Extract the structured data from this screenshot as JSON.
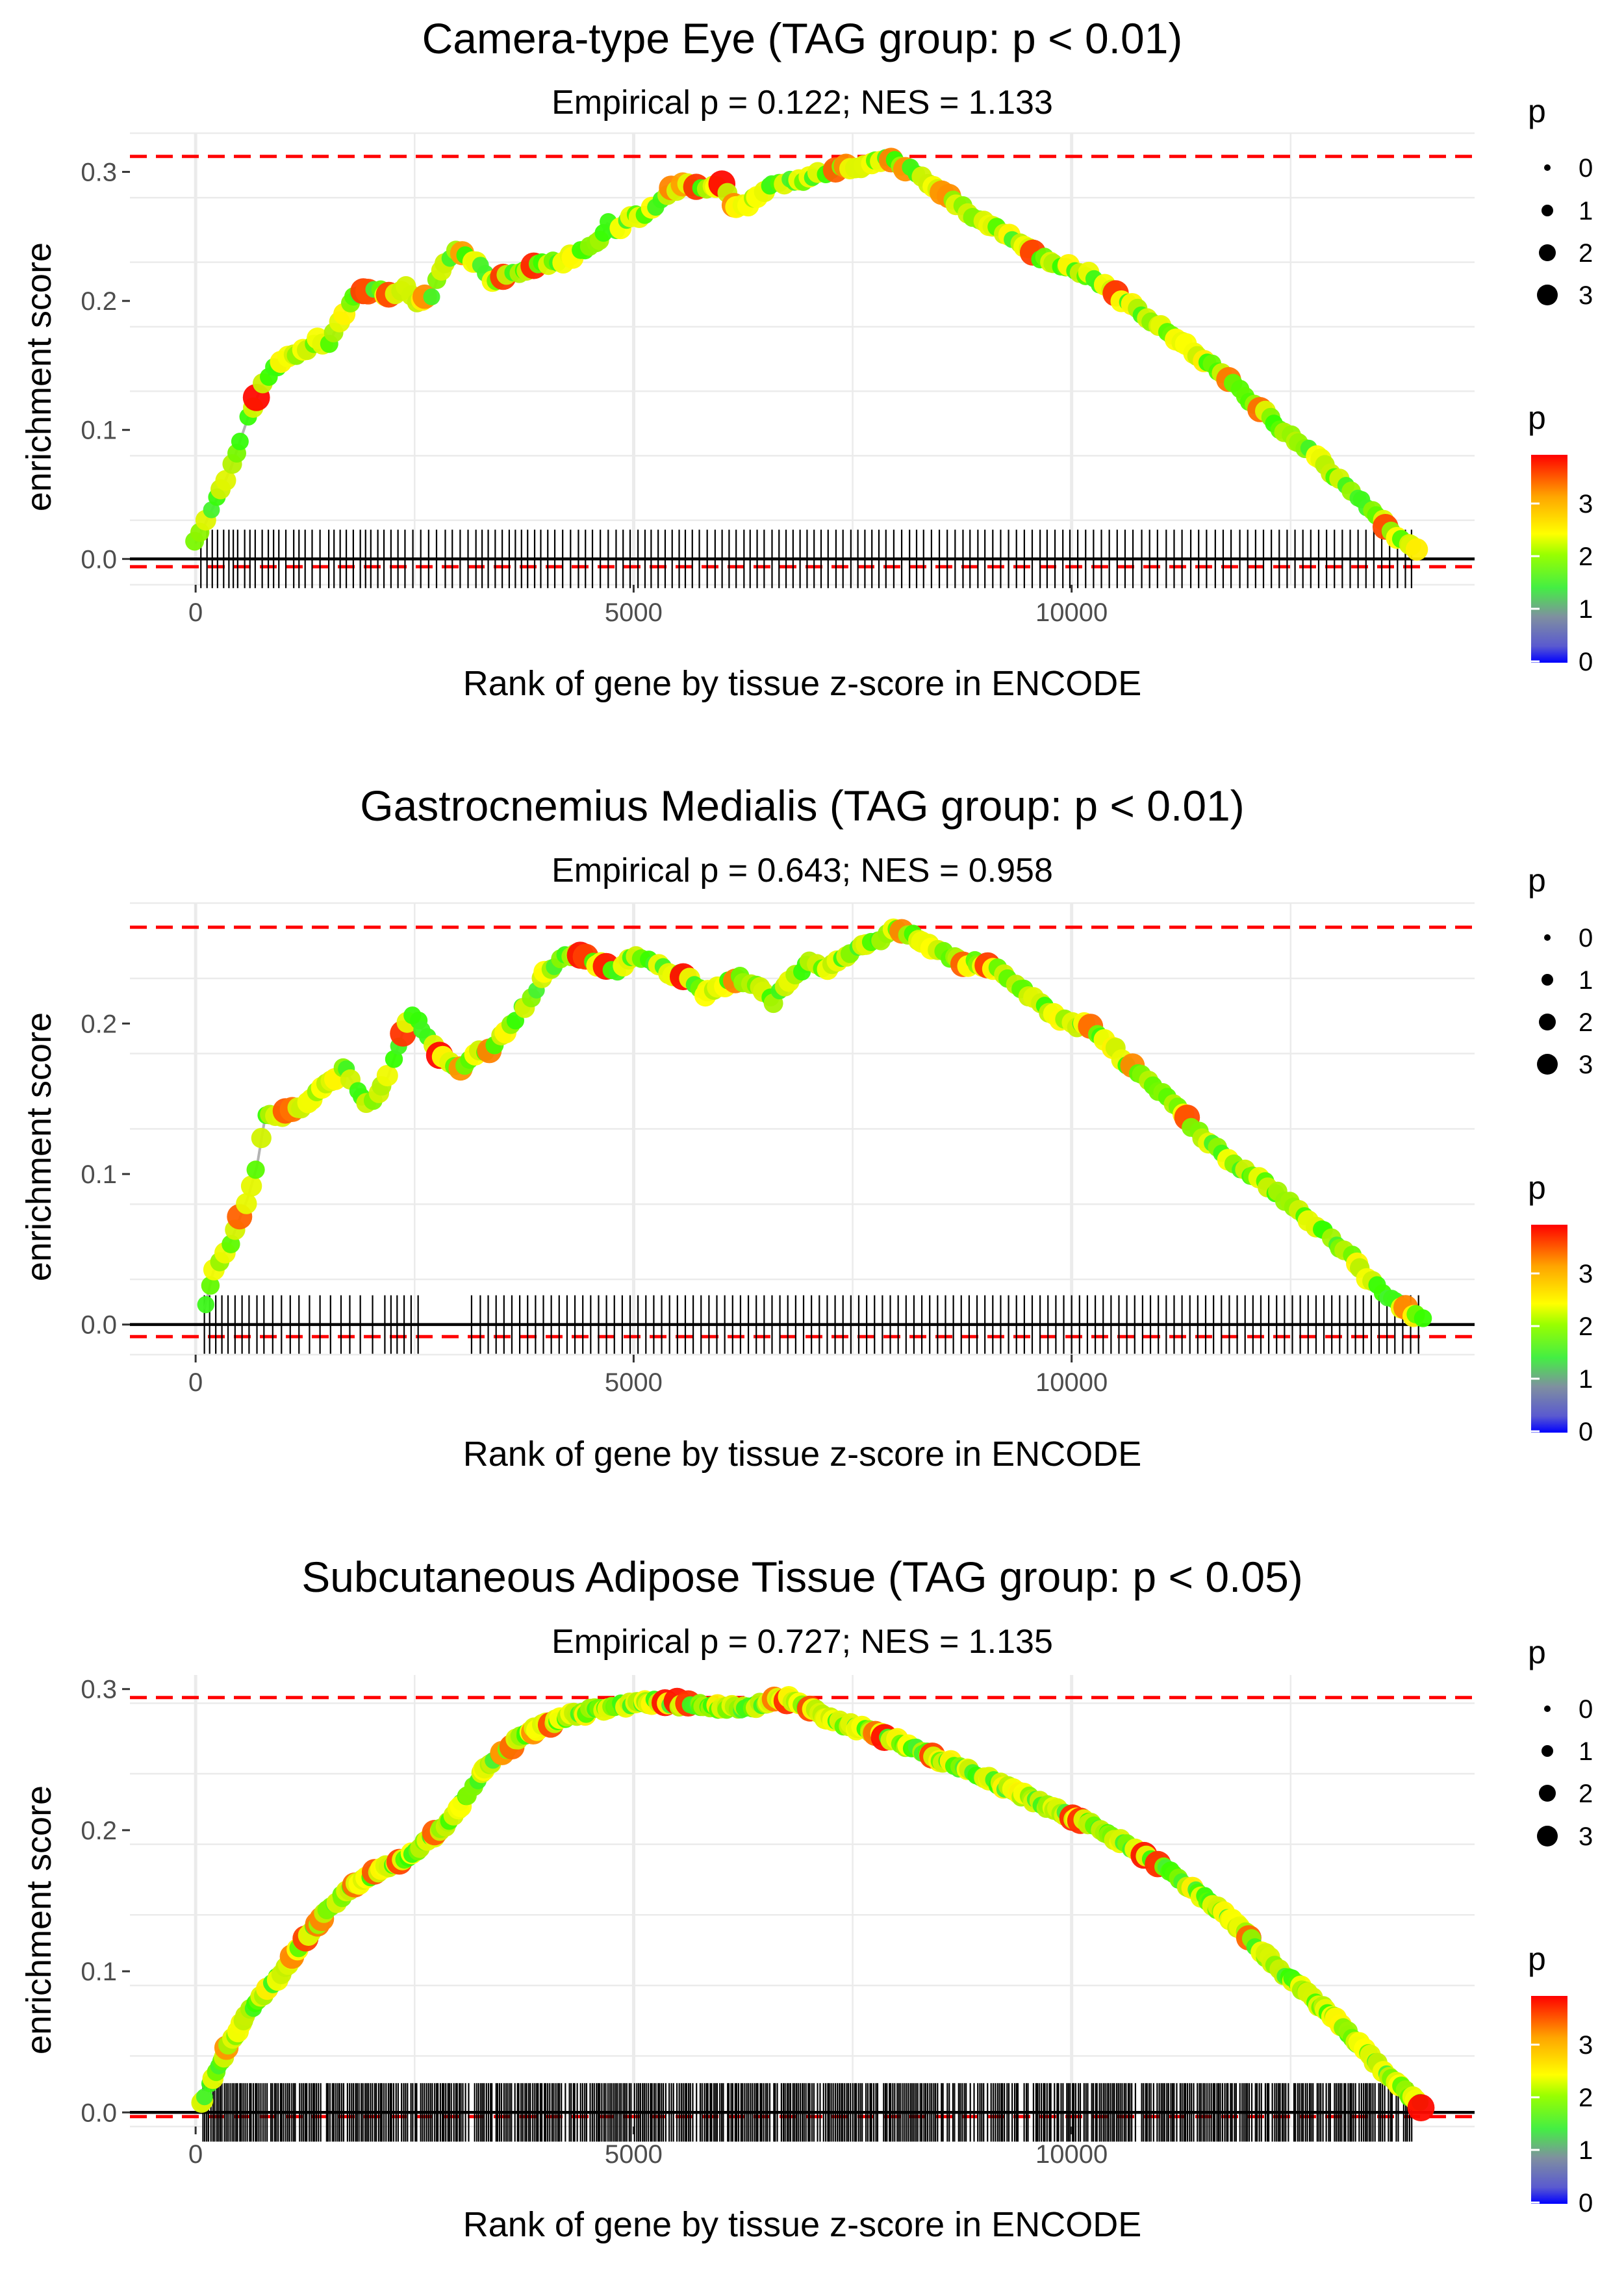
{
  "chart_data": [
    {
      "type": "line",
      "title": "Camera-type Eye (TAG group: p < 0.01)",
      "subtitle": "Empirical p = 0.122; NES = 1.133",
      "xlabel": "Rank of gene by tissue z-score in ENCODE",
      "ylabel": "enrichment score",
      "xlim": [
        -750,
        14600
      ],
      "ylim": [
        -0.02,
        0.33
      ],
      "xticks": [
        0,
        5000,
        10000
      ],
      "xtick_labels": [
        "0",
        "5000",
        "10000"
      ],
      "yticks": [
        0.0,
        0.1,
        0.2,
        0.3
      ],
      "ytick_labels": [
        "0.0",
        "0.1",
        "0.2",
        "0.3"
      ],
      "max_line": 0.312,
      "min_line": -0.006,
      "curve_x": [
        0,
        200,
        400,
        600,
        800,
        1000,
        1200,
        1400,
        1500,
        1700,
        1800,
        2000,
        2200,
        2400,
        2500,
        2700,
        2800,
        3000,
        3200,
        3400,
        3600,
        3800,
        4000,
        4200,
        4400,
        4600,
        4700,
        4800,
        5000,
        5200,
        5400,
        5600,
        5800,
        6000,
        6200,
        6400,
        6600,
        6800,
        7000,
        7200,
        7400,
        7600,
        7800,
        8000,
        8200,
        8400,
        8600,
        8800,
        9000,
        9200,
        9400,
        9600,
        9800,
        10000,
        10200,
        10400,
        10600,
        10800,
        11000,
        11200,
        11400,
        11600,
        11800,
        12000,
        12200,
        12400,
        12600,
        12800,
        13000,
        13200,
        13400,
        13600,
        13800,
        13950
      ],
      "curve_y": [
        0.012,
        0.04,
        0.07,
        0.11,
        0.14,
        0.155,
        0.16,
        0.17,
        0.165,
        0.19,
        0.205,
        0.21,
        0.205,
        0.21,
        0.2,
        0.205,
        0.225,
        0.24,
        0.23,
        0.215,
        0.22,
        0.225,
        0.23,
        0.23,
        0.24,
        0.245,
        0.26,
        0.255,
        0.265,
        0.27,
        0.285,
        0.29,
        0.285,
        0.29,
        0.27,
        0.28,
        0.29,
        0.293,
        0.295,
        0.3,
        0.303,
        0.305,
        0.31,
        0.308,
        0.3,
        0.29,
        0.28,
        0.27,
        0.26,
        0.255,
        0.245,
        0.235,
        0.23,
        0.225,
        0.22,
        0.21,
        0.2,
        0.19,
        0.18,
        0.17,
        0.16,
        0.15,
        0.14,
        0.125,
        0.115,
        0.1,
        0.09,
        0.08,
        0.065,
        0.05,
        0.04,
        0.025,
        0.012,
        0.005
      ],
      "hits_x": [
        60,
        130,
        190,
        250,
        320,
        380,
        430,
        480,
        560,
        620,
        680,
        760,
        830,
        890,
        950,
        1030,
        1120,
        1180,
        1250,
        1330,
        1420,
        1520,
        1580,
        1650,
        1720,
        1800,
        1880,
        1940,
        2000,
        2080,
        2150,
        2230,
        2310,
        2390,
        2480,
        2570,
        2660,
        2750,
        2850,
        2930,
        3020,
        3110,
        3200,
        3270,
        3340,
        3420,
        3500,
        3580,
        3650,
        3720,
        3790,
        3870,
        3940,
        4020,
        4100,
        4190,
        4280,
        4370,
        4450,
        4530,
        4620,
        4710,
        4800,
        4880,
        4960,
        5050,
        5130,
        5200,
        5280,
        5360,
        5440,
        5520,
        5590,
        5670,
        5750,
        5840,
        5930,
        6010,
        6090,
        6170,
        6260,
        6330,
        6410,
        6490,
        6580,
        6660,
        6740,
        6820,
        6900,
        6980,
        7060,
        7140,
        7220,
        7310,
        7390,
        7480,
        7560,
        7640,
        7720,
        7800,
        7880,
        7970,
        8060,
        8150,
        8230,
        8310,
        8400,
        8490,
        8580,
        8670,
        8760,
        8840,
        8930,
        9010,
        9100,
        9190,
        9280,
        9370,
        9460,
        9550,
        9640,
        9720,
        9810,
        9900,
        9980,
        10070,
        10160,
        10250,
        10340,
        10430,
        10520,
        10610,
        10700,
        10800,
        10890,
        10980,
        11080,
        11170,
        11260,
        11360,
        11450,
        11540,
        11640,
        11730,
        11820,
        11920,
        12010,
        12100,
        12190,
        12280,
        12370,
        12460,
        12550,
        12640,
        12730,
        12820,
        12910,
        13000,
        13090,
        13180,
        13270,
        13360,
        13450,
        13540,
        13630,
        13720,
        13810,
        13880
      ],
      "point_seed": 3,
      "legend_size": {
        "title": "p",
        "labels": [
          "0",
          "1",
          "2",
          "3"
        ]
      },
      "legend_color": {
        "title": "p",
        "labels": [
          "0",
          "1",
          "2",
          "3"
        ]
      }
    },
    {
      "type": "line",
      "title": "Gastrocnemius Medialis (TAG group: p < 0.01)",
      "subtitle": "Empirical p = 0.643; NES = 0.958",
      "xlabel": "Rank of gene by tissue z-score in ENCODE",
      "ylabel": "enrichment score",
      "xlim": [
        -750,
        14600
      ],
      "ylim": [
        -0.02,
        0.28
      ],
      "xticks": [
        0,
        5000,
        10000
      ],
      "xtick_labels": [
        "0",
        "5000",
        "10000"
      ],
      "yticks": [
        0.0,
        0.1,
        0.2
      ],
      "ytick_labels": [
        "0.0",
        "0.1",
        "0.2"
      ],
      "max_line": 0.264,
      "min_line": -0.008,
      "curve_x": [
        100,
        200,
        400,
        600,
        700,
        800,
        1000,
        1200,
        1400,
        1600,
        1700,
        1800,
        2000,
        2200,
        2400,
        2500,
        2700,
        3000,
        3200,
        3400,
        3600,
        3800,
        4000,
        4200,
        4400,
        4600,
        4800,
        5000,
        5200,
        5400,
        5600,
        5800,
        6000,
        6200,
        6400,
        6500,
        6600,
        6800,
        7000,
        7200,
        7400,
        7600,
        7800,
        8000,
        8200,
        8400,
        8600,
        8800,
        9000,
        9200,
        9400,
        9600,
        9800,
        10000,
        10200,
        10400,
        10600,
        10800,
        11000,
        11200,
        11400,
        11600,
        11800,
        12000,
        12200,
        12400,
        12600,
        12800,
        13000,
        13200,
        13400,
        13600,
        13800,
        14000
      ],
      "curve_y": [
        0.01,
        0.035,
        0.055,
        0.085,
        0.105,
        0.14,
        0.14,
        0.145,
        0.155,
        0.165,
        0.17,
        0.16,
        0.145,
        0.165,
        0.2,
        0.205,
        0.185,
        0.17,
        0.18,
        0.185,
        0.2,
        0.215,
        0.235,
        0.245,
        0.245,
        0.24,
        0.235,
        0.245,
        0.24,
        0.235,
        0.23,
        0.22,
        0.225,
        0.23,
        0.225,
        0.22,
        0.215,
        0.23,
        0.24,
        0.235,
        0.245,
        0.25,
        0.255,
        0.262,
        0.258,
        0.25,
        0.245,
        0.24,
        0.24,
        0.235,
        0.225,
        0.215,
        0.205,
        0.2,
        0.198,
        0.19,
        0.175,
        0.165,
        0.155,
        0.145,
        0.13,
        0.12,
        0.11,
        0.1,
        0.095,
        0.085,
        0.075,
        0.065,
        0.055,
        0.045,
        0.03,
        0.018,
        0.01,
        0.004
      ],
      "hits_x": [
        100,
        160,
        230,
        300,
        370,
        450,
        530,
        610,
        700,
        780,
        880,
        980,
        1080,
        1180,
        1300,
        1420,
        1540,
        1660,
        1760,
        1880,
        2020,
        2160,
        2230,
        2300,
        2380,
        2460,
        2540,
        3150,
        3250,
        3340,
        3430,
        3520,
        3610,
        3700,
        3790,
        3880,
        3970,
        4060,
        4150,
        4240,
        4330,
        4420,
        4510,
        4600,
        4690,
        4780,
        4870,
        4960,
        5050,
        5140,
        5230,
        5320,
        5410,
        5500,
        5590,
        5680,
        5770,
        5860,
        5950,
        6040,
        6130,
        6220,
        6310,
        6400,
        6490,
        6580,
        6670,
        6760,
        6850,
        6940,
        7030,
        7120,
        7210,
        7300,
        7390,
        7480,
        7570,
        7660,
        7750,
        7840,
        7930,
        8020,
        8110,
        8200,
        8290,
        8380,
        8470,
        8560,
        8650,
        8740,
        8830,
        8920,
        9010,
        9100,
        9190,
        9280,
        9370,
        9460,
        9550,
        9640,
        9730,
        9820,
        9910,
        10000,
        10090,
        10180,
        10270,
        10360,
        10450,
        10540,
        10630,
        10720,
        10810,
        10900,
        10990,
        11080,
        11170,
        11260,
        11350,
        11440,
        11530,
        11620,
        11710,
        11800,
        11890,
        11980,
        12070,
        12160,
        12250,
        12340,
        12430,
        12520,
        12610,
        12700,
        12790,
        12880,
        12970,
        13060,
        13150,
        13240,
        13330,
        13420,
        13510,
        13600,
        13690,
        13780,
        13870,
        13960
      ],
      "point_seed": 11,
      "legend_size": {
        "title": "p",
        "labels": [
          "0",
          "1",
          "2",
          "3"
        ]
      },
      "legend_color": {
        "title": "p",
        "labels": [
          "0",
          "1",
          "2",
          "3"
        ]
      }
    },
    {
      "type": "line",
      "title": "Subcutaneous Adipose Tissue (TAG group: p < 0.05)",
      "subtitle": "Empirical p = 0.727; NES = 1.135",
      "xlabel": "Rank of gene by tissue z-score in ENCODE",
      "ylabel": "enrichment score",
      "xlim": [
        -750,
        14600
      ],
      "ylim": [
        -0.01,
        0.31
      ],
      "xticks": [
        0,
        5000,
        10000
      ],
      "xtick_labels": [
        "0",
        "5000",
        "10000"
      ],
      "yticks": [
        0.0,
        0.1,
        0.2,
        0.3
      ],
      "ytick_labels": [
        "0.0",
        "0.1",
        "0.2",
        "0.3"
      ],
      "max_line": 0.294,
      "min_line": -0.003,
      "curve_x": [
        50,
        200,
        400,
        600,
        800,
        1000,
        1200,
        1400,
        1600,
        1800,
        2000,
        2200,
        2400,
        2600,
        2800,
        3000,
        3200,
        3400,
        3600,
        3800,
        4000,
        4200,
        4400,
        4600,
        4800,
        5000,
        5200,
        5400,
        5600,
        5800,
        6000,
        6200,
        6400,
        6600,
        6800,
        7000,
        7200,
        7400,
        7600,
        7800,
        8000,
        8200,
        8400,
        8600,
        8800,
        9000,
        9200,
        9400,
        9600,
        9800,
        10000,
        10200,
        10400,
        10600,
        10800,
        11000,
        11200,
        11400,
        11600,
        11800,
        12000,
        12200,
        12400,
        12600,
        12800,
        13000,
        13200,
        13400,
        13600,
        13800,
        14000
      ],
      "curve_y": [
        0.003,
        0.025,
        0.05,
        0.07,
        0.085,
        0.1,
        0.12,
        0.135,
        0.15,
        0.16,
        0.168,
        0.175,
        0.18,
        0.19,
        0.2,
        0.215,
        0.235,
        0.25,
        0.26,
        0.27,
        0.275,
        0.28,
        0.283,
        0.286,
        0.288,
        0.29,
        0.291,
        0.29,
        0.289,
        0.288,
        0.287,
        0.286,
        0.288,
        0.292,
        0.293,
        0.287,
        0.28,
        0.275,
        0.272,
        0.268,
        0.263,
        0.258,
        0.253,
        0.248,
        0.243,
        0.238,
        0.232,
        0.226,
        0.22,
        0.215,
        0.21,
        0.205,
        0.198,
        0.19,
        0.183,
        0.175,
        0.167,
        0.158,
        0.148,
        0.138,
        0.125,
        0.112,
        0.1,
        0.09,
        0.078,
        0.066,
        0.053,
        0.04,
        0.027,
        0.015,
        0.004
      ],
      "hits_x": [],
      "dense_hits": {
        "start": 80,
        "end": 13900,
        "step": 22
      },
      "point_seed": 23,
      "legend_size": {
        "title": "p",
        "labels": [
          "0",
          "1",
          "2",
          "3"
        ]
      },
      "legend_color": {
        "title": "p",
        "labels": [
          "0",
          "1",
          "2",
          "3"
        ]
      }
    }
  ],
  "colors": {
    "curve": "#b3b3b3",
    "threshold_line": "#ff0000",
    "zero_line": "#000000",
    "grid": "#ebebeb",
    "gradient_0": "#0000ff",
    "gradient_05": "#7f7fa8",
    "gradient_1": "#55e855",
    "gradient_15": "#33ff00",
    "gradient_2": "#c8f000",
    "gradient_25": "#ffff00",
    "gradient_3": "#ffa500",
    "gradient_max": "#ff0000"
  }
}
